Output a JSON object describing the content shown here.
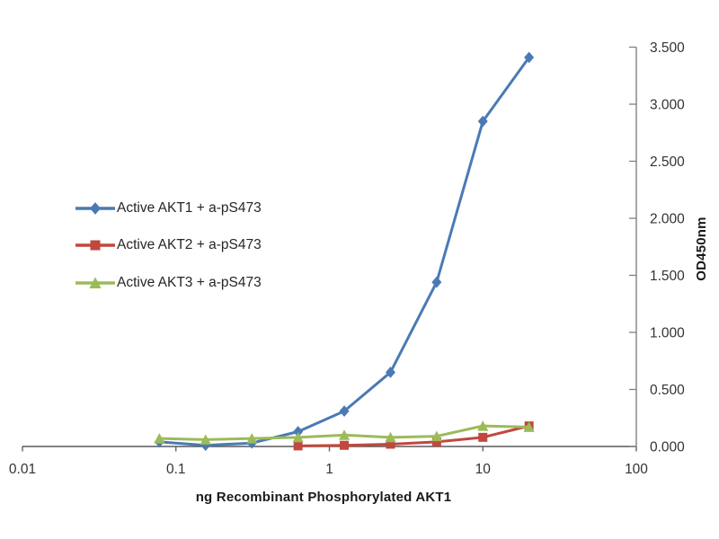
{
  "chart_data": {
    "type": "line",
    "title": "",
    "xlabel": "ng Recombinant Phosphorylated AKT1",
    "ylabel": "OD450nm",
    "x_scale": "log",
    "x_range": [
      0.01,
      100
    ],
    "y_range": [
      0,
      3.5
    ],
    "x_ticks": [
      "0.01",
      "0.1",
      "1",
      "10",
      "100"
    ],
    "y_ticks": [
      "0.000",
      "0.500",
      "1.000",
      "1.500",
      "2.000",
      "2.500",
      "3.000",
      "3.500"
    ],
    "y_axis_side": "right",
    "legend_position": "middle-left",
    "grid": "off",
    "axis_colors": {
      "x_axis": "#595959",
      "y_axis": "#808080",
      "tick_text": "#333333",
      "label_text": "#1a1a1a"
    },
    "series": [
      {
        "name": "Active AKT1 + a-pS473",
        "color": "#4A7AB5",
        "marker": "diamond",
        "x": [
          0.078,
          0.156,
          0.3125,
          0.625,
          1.25,
          2.5,
          5,
          10,
          20
        ],
        "values": [
          0.04,
          0.01,
          0.03,
          0.13,
          0.31,
          0.65,
          1.44,
          2.85,
          3.41
        ]
      },
      {
        "name": "Active AKT2 + a-pS473",
        "color": "#C2473D",
        "marker": "square",
        "x": [
          0.625,
          1.25,
          2.5,
          5,
          10,
          20
        ],
        "values": [
          0.005,
          0.01,
          0.02,
          0.04,
          0.08,
          0.18
        ]
      },
      {
        "name": "Active AKT3 + a-pS473",
        "color": "#9BBB59",
        "marker": "triangle",
        "x": [
          0.078,
          0.156,
          0.3125,
          0.625,
          1.25,
          2.5,
          5,
          10,
          20
        ],
        "values": [
          0.07,
          0.06,
          0.07,
          0.08,
          0.1,
          0.08,
          0.09,
          0.18,
          0.17
        ]
      }
    ]
  }
}
